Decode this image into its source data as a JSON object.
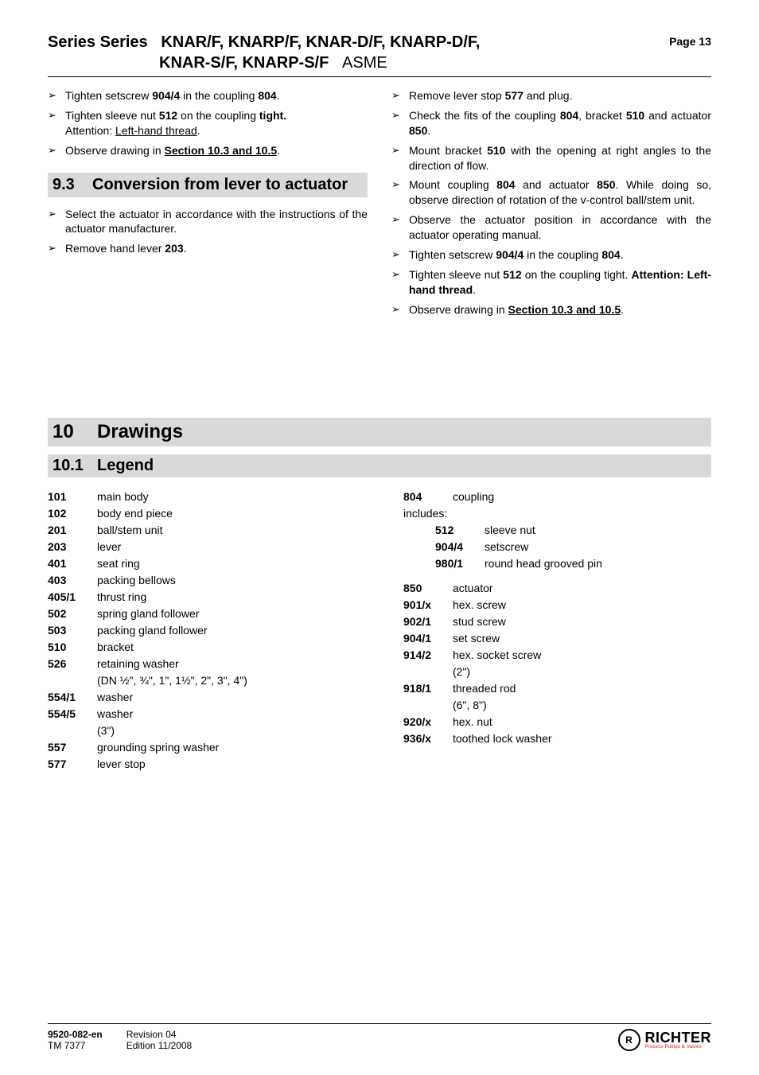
{
  "header": {
    "series_prefix": "Series Series",
    "series_line1_models": "KNAR/F, KNARP/F, KNAR-D/F, KNARP-D/F,",
    "series_line2_models": "KNAR-S/F, KNARP-S/F",
    "series_suffix": "ASME",
    "page_label": "Page 13"
  },
  "left_top_bullets": [
    {
      "pre": "Tighten setscrew ",
      "b1": "904/4",
      "mid": " in the coupling ",
      "b2": "804",
      "post": "."
    },
    {
      "pre": "Tighten sleeve nut ",
      "b1": "512",
      "mid": " on the coupling ",
      "b2": "tight.",
      "post": ""
    }
  ],
  "left_top_attention": "Attention: ",
  "left_top_attention_u": "Left-hand thread",
  "left_top_attention_post": ".",
  "left_top_bullet3_pre": "Observe drawing in ",
  "left_top_bullet3_u": "Section 10.3 and 10.5",
  "left_top_bullet3_post": ".",
  "section_93_num": "9.3",
  "section_93_title": "Conversion from lever to actuator",
  "left_93_bullets": [
    "Select the actuator in accordance with the instructions of the actuator manufacturer."
  ],
  "left_93_bullet2_pre": "Remove hand lever ",
  "left_93_bullet2_b": "203",
  "left_93_bullet2_post": ".",
  "right_bullets": [
    {
      "text_pre": "Remove lever stop ",
      "b": "577",
      "text_post": " and plug."
    },
    {
      "text_pre": "Check the fits of the coupling ",
      "b": "804",
      "mid": ", bracket ",
      "b2": "510",
      "mid2": " and actuator ",
      "b3": "850",
      "text_post": "."
    },
    {
      "text_pre": "Mount bracket ",
      "b": "510",
      "text_post": " with the opening at right angles to the direction of flow."
    },
    {
      "text_pre": "Mount coupling ",
      "b": "804",
      "mid": " and actuator ",
      "b2": "850",
      "text_post": ". While doing so, observe direction of rotation of the v-control ball/stem unit."
    },
    {
      "text_pre": "Observe the actuator position in accordance with the actuator operating manual.",
      "b": "",
      "text_post": ""
    },
    {
      "text_pre": "Tighten setscrew ",
      "b": "904/4",
      "mid": " in the coupling ",
      "b2": "804",
      "text_post": "."
    },
    {
      "text_pre": "Tighten sleeve nut ",
      "b": "512",
      "mid": " on the coupling tight. ",
      "b2": "",
      "bold_tail": "Attention: Left-hand thread",
      "text_post": "."
    },
    {
      "text_pre": "Observe drawing in ",
      "u": "Section 10.3 and 10.5",
      "text_post": "."
    }
  ],
  "section_10_num": "10",
  "section_10_title": "Drawings",
  "section_101_num": "10.1",
  "section_101_title": "Legend",
  "legend_left": [
    {
      "k": "101",
      "v": "main body"
    },
    {
      "k": "102",
      "v": "body end piece"
    },
    {
      "k": "201",
      "v": "ball/stem unit"
    },
    {
      "k": "203",
      "v": "lever"
    },
    {
      "k": "401",
      "v": "seat ring"
    },
    {
      "k": "403",
      "v": "packing bellows"
    },
    {
      "k": "405/1",
      "v": "thrust ring"
    },
    {
      "k": "502",
      "v": "spring gland follower"
    },
    {
      "k": "503",
      "v": "packing gland follower"
    },
    {
      "k": "510",
      "v": "bracket"
    },
    {
      "k": "526",
      "v": "retaining washer",
      "note": "(DN ½\", ¾\", 1\", 1½\", 2\", 3\", 4\")"
    },
    {
      "k": "554/1",
      "v": "washer"
    },
    {
      "k": "554/5",
      "v": "washer",
      "note": "(3\")"
    },
    {
      "k": "557",
      "v": "grounding spring washer"
    },
    {
      "k": "577",
      "v": "lever stop"
    }
  ],
  "legend_right_804": {
    "k": "804",
    "v": "coupling"
  },
  "legend_right_includes": "includes:",
  "legend_right_804_sub": [
    {
      "k": "512",
      "v": "sleeve nut"
    },
    {
      "k": "904/4",
      "v": "setscrew"
    },
    {
      "k": "980/1",
      "v": "round head grooved pin"
    }
  ],
  "legend_right_rest": [
    {
      "k": "850",
      "v": "actuator"
    },
    {
      "k": "901/x",
      "v": "hex. screw"
    },
    {
      "k": "902/1",
      "v": "stud screw"
    },
    {
      "k": "904/1",
      "v": "set screw"
    },
    {
      "k": "914/2",
      "v": "hex. socket screw",
      "note": "(2\")"
    },
    {
      "k": "918/1",
      "v": "threaded rod",
      "note": "(6\", 8\")"
    },
    {
      "k": "920/x",
      "v": "hex. nut"
    },
    {
      "k": "936/x",
      "v": "toothed lock washer"
    }
  ],
  "footer": {
    "doc_num": "9520-082-en",
    "tm": "TM 7377",
    "rev": "Revision 04",
    "edition": "Edition 11/2008",
    "logo_name": "RICHTER",
    "logo_tag": "Process Pumps & Valves",
    "logo_mark": "R"
  }
}
